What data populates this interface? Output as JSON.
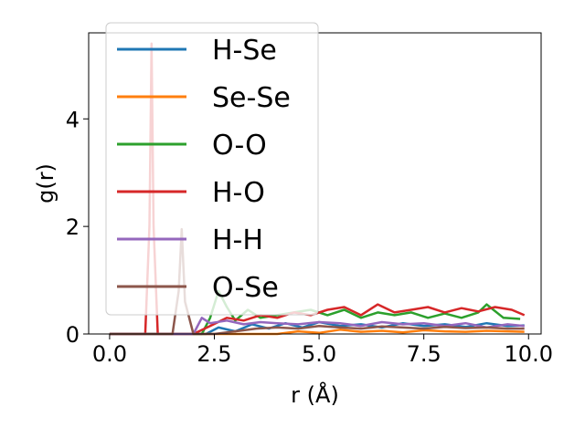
{
  "chart_data": {
    "type": "line",
    "xlabel": "r (Å)",
    "ylabel": "g(r)",
    "xlim": [
      -0.5,
      10.3
    ],
    "ylim": [
      0,
      5.6
    ],
    "x_ticks": [
      "0.0",
      "2.5",
      "5.0",
      "7.5",
      "10.0"
    ],
    "x_tick_values": [
      0,
      2.5,
      5,
      7.5,
      10
    ],
    "y_ticks": [
      "0",
      "2",
      "4"
    ],
    "y_tick_values": [
      0,
      2,
      4
    ],
    "legend_position": "top-left",
    "grid": false,
    "series": [
      {
        "name": "H-Se",
        "color": "#1f77b4",
        "x": [
          0,
          1.0,
          2.0,
          2.3,
          2.6,
          3.0,
          3.4,
          3.8,
          4.2,
          4.6,
          5.0,
          5.5,
          6.0,
          6.5,
          7.0,
          7.5,
          8.0,
          8.5,
          9.0,
          9.5,
          9.9
        ],
        "y": [
          0,
          0,
          0,
          0.0,
          0.12,
          0.05,
          0.18,
          0.1,
          0.2,
          0.12,
          0.22,
          0.15,
          0.18,
          0.12,
          0.2,
          0.15,
          0.18,
          0.13,
          0.2,
          0.15,
          0.16
        ]
      },
      {
        "name": "Se-Se",
        "color": "#ff7f0e",
        "x": [
          0,
          2.0,
          4.0,
          4.5,
          5.0,
          5.5,
          6.0,
          6.5,
          7.0,
          7.5,
          8.0,
          8.5,
          9.0,
          9.5,
          9.9
        ],
        "y": [
          0,
          0,
          0,
          0.05,
          0.02,
          0.08,
          0.04,
          0.06,
          0.03,
          0.07,
          0.05,
          0.04,
          0.06,
          0.05,
          0.04
        ]
      },
      {
        "name": "O-O",
        "color": "#2ca02c",
        "x": [
          0,
          1.0,
          2.2,
          2.4,
          2.6,
          2.8,
          3.0,
          3.3,
          3.6,
          4.0,
          4.4,
          4.8,
          5.2,
          5.6,
          6.0,
          6.4,
          6.8,
          7.2,
          7.6,
          8.0,
          8.4,
          8.8,
          9.0,
          9.4,
          9.8
        ],
        "y": [
          0,
          0,
          0,
          0.3,
          0.8,
          0.5,
          0.25,
          0.45,
          0.3,
          0.35,
          0.4,
          0.45,
          0.35,
          0.45,
          0.3,
          0.4,
          0.35,
          0.4,
          0.3,
          0.38,
          0.3,
          0.4,
          0.55,
          0.3,
          0.28
        ]
      },
      {
        "name": "H-O",
        "color": "#d62728",
        "x": [
          0,
          0.85,
          0.95,
          1.0,
          1.05,
          1.15,
          1.4,
          1.6,
          1.8,
          2.0,
          2.4,
          2.8,
          3.2,
          3.6,
          4.0,
          4.4,
          4.8,
          5.2,
          5.6,
          6.0,
          6.4,
          6.8,
          7.2,
          7.6,
          8.0,
          8.4,
          8.8,
          9.2,
          9.6,
          9.9
        ],
        "y": [
          0,
          0,
          2.0,
          5.4,
          2.0,
          0,
          0,
          0,
          0,
          0,
          0.15,
          0.3,
          0.25,
          0.35,
          0.3,
          0.4,
          0.35,
          0.45,
          0.5,
          0.35,
          0.55,
          0.4,
          0.45,
          0.5,
          0.4,
          0.48,
          0.42,
          0.5,
          0.45,
          0.35
        ]
      },
      {
        "name": "H-H",
        "color": "#9467bd",
        "x": [
          0,
          1.0,
          1.5,
          2.0,
          2.2,
          2.4,
          2.8,
          3.2,
          3.6,
          4.0,
          4.5,
          5.0,
          5.5,
          6.0,
          6.5,
          7.0,
          7.5,
          8.0,
          8.5,
          9.0,
          9.5,
          9.9
        ],
        "y": [
          0,
          0,
          0,
          0,
          0.3,
          0.2,
          0.25,
          0.18,
          0.22,
          0.2,
          0.18,
          0.22,
          0.2,
          0.15,
          0.22,
          0.18,
          0.2,
          0.15,
          0.2,
          0.12,
          0.18,
          0.15
        ]
      },
      {
        "name": "O-Se",
        "color": "#8c564b",
        "x": [
          0,
          1.0,
          1.5,
          1.65,
          1.72,
          1.8,
          2.0,
          2.5,
          3.0,
          3.5,
          4.0,
          4.5,
          5.0,
          5.5,
          6.0,
          6.5,
          7.0,
          7.5,
          8.0,
          8.5,
          9.0,
          9.5,
          9.9
        ],
        "y": [
          0,
          0,
          0,
          0.8,
          1.95,
          0.6,
          0,
          0,
          0.05,
          0.1,
          0.12,
          0.1,
          0.15,
          0.12,
          0.1,
          0.14,
          0.12,
          0.1,
          0.13,
          0.11,
          0.12,
          0.1,
          0.1
        ]
      }
    ]
  }
}
